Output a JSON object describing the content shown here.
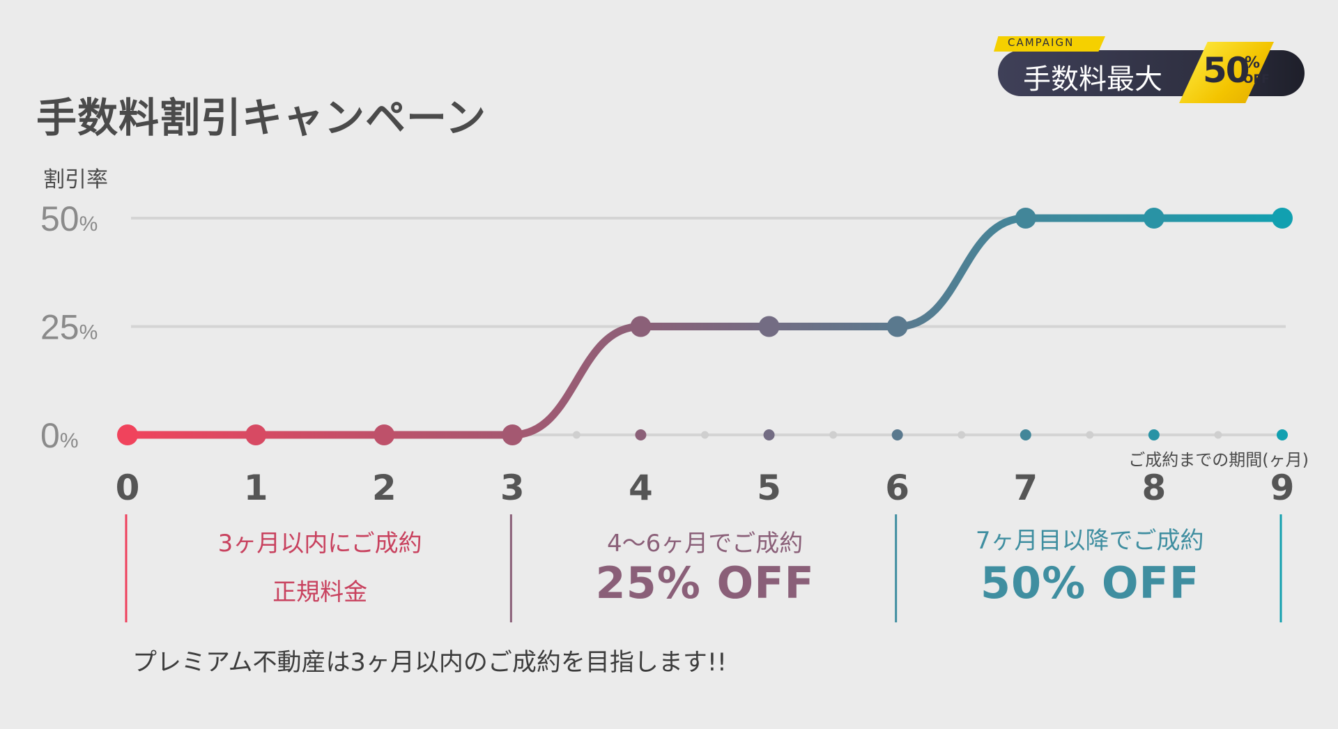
{
  "page": {
    "title": "手数料割引キャンペーン",
    "note": "プレミアム不動産は3ヶ月以内のご成約を目指します!!"
  },
  "badge": {
    "tag": "CAMPAIGN",
    "text": "手数料最大",
    "value": "50",
    "percent": "%",
    "off": "OFF"
  },
  "chart_data": {
    "type": "line",
    "title": "手数料割引キャンペーン",
    "ylabel": "割引率",
    "xlabel": "ご成約までの期間(ヶ月)",
    "x": [
      0,
      1,
      2,
      3,
      4,
      5,
      6,
      7,
      8,
      9
    ],
    "series": [
      {
        "values": [
          0,
          0,
          0,
          0,
          25,
          25,
          25,
          50,
          50,
          50
        ]
      }
    ],
    "ylim": [
      0,
      50
    ],
    "xlim": [
      0,
      9
    ],
    "yticks": [
      {
        "value": 0,
        "num": "0",
        "unit": "%"
      },
      {
        "value": 25,
        "num": "25",
        "unit": "%"
      },
      {
        "value": 50,
        "num": "50",
        "unit": "%"
      }
    ],
    "xticks": [
      "0",
      "1",
      "2",
      "3",
      "4",
      "5",
      "6",
      "7",
      "8",
      "9"
    ],
    "grid": true,
    "colors": {
      "start": "#f0435c",
      "mid": "#8a6078",
      "end": "#11a0b0",
      "grid": "#d4d4d4",
      "tick": "#555555"
    }
  },
  "tiers": [
    {
      "line1": "3ヶ月以内にご成約",
      "line2": "正規料金",
      "color": "#c8415e"
    },
    {
      "line1": "4〜6ヶ月でご成約",
      "line2": "25% OFF",
      "color": "#8a5f78"
    },
    {
      "line1": "7ヶ月目以降でご成約",
      "line2": "50% OFF",
      "color": "#3f8ea0"
    }
  ],
  "dividers": {
    "colors": [
      "#ee3f5b",
      "#8a5f78",
      "#3f8ea0",
      "#13a0ae"
    ]
  }
}
